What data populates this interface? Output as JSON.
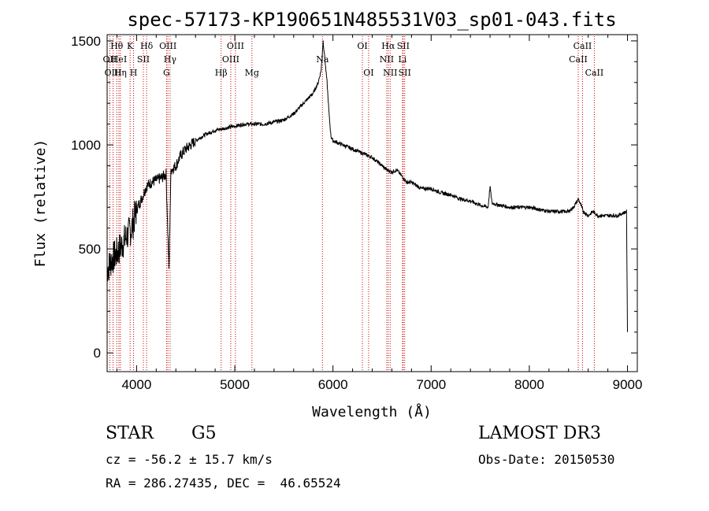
{
  "chart_data": {
    "type": "line",
    "title": "spec-57173-KP190651N485531V03_sp01-043.fits",
    "xlabel": "Wavelength (Å)",
    "ylabel": "Flux (relative)",
    "xlim": [
      3700,
      9100
    ],
    "ylim": [
      -90,
      1530
    ],
    "xticks": [
      4000,
      5000,
      6000,
      7000,
      8000,
      9000
    ],
    "yticks": [
      0,
      500,
      1000,
      1500
    ],
    "grid": false,
    "series": [
      {
        "name": "spectrum",
        "x": [
          3700,
          3750,
          3800,
          3850,
          3900,
          3950,
          4000,
          4050,
          4100,
          4150,
          4200,
          4250,
          4300,
          4330,
          4350,
          4400,
          4450,
          4500,
          4550,
          4600,
          4700,
          4800,
          4900,
          5000,
          5100,
          5200,
          5300,
          5400,
          5500,
          5600,
          5700,
          5800,
          5850,
          5880,
          5900,
          5920,
          5940,
          5960,
          5980,
          6000,
          6100,
          6200,
          6300,
          6400,
          6500,
          6550,
          6600,
          6650,
          6700,
          6750,
          6800,
          6900,
          7000,
          7100,
          7200,
          7300,
          7400,
          7500,
          7580,
          7600,
          7620,
          7700,
          7800,
          7900,
          8000,
          8100,
          8200,
          8300,
          8400,
          8450,
          8500,
          8550,
          8600,
          8650,
          8700,
          8800,
          8900,
          8990,
          9000
        ],
        "y": [
          400,
          450,
          480,
          520,
          560,
          600,
          690,
          740,
          800,
          820,
          830,
          840,
          860,
          400,
          880,
          900,
          950,
          980,
          1000,
          1020,
          1050,
          1070,
          1080,
          1090,
          1100,
          1100,
          1100,
          1110,
          1120,
          1150,
          1200,
          1250,
          1300,
          1360,
          1500,
          1400,
          1300,
          1150,
          1040,
          1020,
          1000,
          980,
          960,
          940,
          900,
          880,
          870,
          880,
          850,
          820,
          820,
          790,
          790,
          770,
          760,
          740,
          730,
          710,
          700,
          800,
          720,
          710,
          700,
          700,
          700,
          690,
          680,
          680,
          680,
          700,
          740,
          680,
          660,
          680,
          660,
          660,
          660,
          680,
          100
        ]
      }
    ],
    "lines": [
      {
        "name": "Hθ",
        "x": 3798,
        "row": 1
      },
      {
        "name": "OII",
        "x": 3727,
        "row": 2
      },
      {
        "name": "OIII",
        "x": 3760,
        "row": 3
      },
      {
        "name": "HeI",
        "x": 3820,
        "row": 2
      },
      {
        "name": "Hη",
        "x": 3835,
        "row": 3
      },
      {
        "name": "K",
        "x": 3934,
        "row": 1
      },
      {
        "name": "H",
        "x": 3969,
        "row": 3
      },
      {
        "name": "SII",
        "x": 4069,
        "row": 2
      },
      {
        "name": "Hδ",
        "x": 4102,
        "row": 1
      },
      {
        "name": "OIII",
        "x": 4319,
        "row": 1
      },
      {
        "name": "Hγ",
        "x": 4341,
        "row": 2
      },
      {
        "name": "G",
        "x": 4305,
        "row": 3
      },
      {
        "name": "Hβ",
        "x": 4861,
        "row": 3
      },
      {
        "name": "OIII",
        "x": 5007,
        "row": 1
      },
      {
        "name": "OIII",
        "x": 4959,
        "row": 2
      },
      {
        "name": "Mg",
        "x": 5175,
        "row": 3
      },
      {
        "name": "Na",
        "x": 5893,
        "row": 2
      },
      {
        "name": "OI",
        "x": 6300,
        "row": 1
      },
      {
        "name": "OI",
        "x": 6363,
        "row": 3
      },
      {
        "name": "Hα",
        "x": 6563,
        "row": 1
      },
      {
        "name": "NII",
        "x": 6548,
        "row": 2
      },
      {
        "name": "NII",
        "x": 6583,
        "row": 3
      },
      {
        "name": "SII",
        "x": 6716,
        "row": 1
      },
      {
        "name": "Li",
        "x": 6708,
        "row": 2
      },
      {
        "name": "SII",
        "x": 6731,
        "row": 3
      },
      {
        "name": "CaII",
        "x": 8542,
        "row": 1
      },
      {
        "name": "CaII",
        "x": 8498,
        "row": 2
      },
      {
        "name": "CaII",
        "x": 8662,
        "row": 3
      }
    ]
  },
  "info": {
    "object_class": "STAR",
    "subclass": "G5",
    "survey": "LAMOST DR3",
    "cz": "cz = -56.2 ± 15.7 km/s",
    "obs_date": "Obs-Date: 20150530",
    "coords": "RA = 286.27435, DEC =  46.65524"
  },
  "colors": {
    "line_marker": "#cc0000",
    "spectrum": "#000000"
  }
}
